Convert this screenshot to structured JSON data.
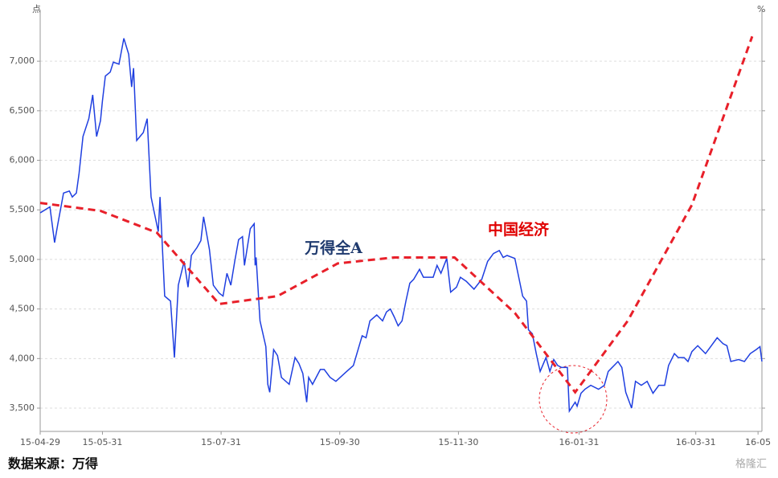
{
  "chart_data": {
    "type": "line",
    "y_unit": "点",
    "y2_unit": "%",
    "source": "数据来源：万得",
    "watermark": "格隆汇",
    "xlim": [
      0,
      371
    ],
    "xticks": [
      {
        "value": 0,
        "label": "15-04-29"
      },
      {
        "value": 32,
        "label": "15-05-31"
      },
      {
        "value": 93,
        "label": "15-07-31"
      },
      {
        "value": 154,
        "label": "15-09-30"
      },
      {
        "value": 215,
        "label": "15-11-30"
      },
      {
        "value": 277,
        "label": "16-01-31"
      },
      {
        "value": 337,
        "label": "16-03-31"
      },
      {
        "value": 369,
        "label": "16-05"
      }
    ],
    "ylim": [
      3265,
      7520
    ],
    "yticks": [
      {
        "value": 3500,
        "label": "3,500"
      },
      {
        "value": 4000,
        "label": "4,000"
      },
      {
        "value": 4500,
        "label": "4,500"
      },
      {
        "value": 5000,
        "label": "5,000"
      },
      {
        "value": 5500,
        "label": "5,500"
      },
      {
        "value": 6000,
        "label": "6,000"
      },
      {
        "value": 6500,
        "label": "6,500"
      },
      {
        "value": 7000,
        "label": "7,000"
      }
    ],
    "grid": true,
    "series": [
      {
        "name": "万得全A",
        "color": "#1f3fe0",
        "dash": false,
        "label_color": "#1f3a6e",
        "x": [
          0,
          5,
          7.4,
          9,
          12,
          15,
          16.5,
          18.6,
          20,
          22,
          25,
          27,
          29,
          31,
          32,
          33.5,
          36,
          37.6,
          40.5,
          43,
          45.5,
          47,
          48,
          49.6,
          53,
          55,
          57,
          60.7,
          61.6,
          64,
          67,
          69,
          71,
          74,
          76,
          77.7,
          80.6,
          82.6,
          84,
          87,
          89,
          92,
          94,
          96,
          98,
          100,
          102,
          104,
          105,
          108,
          110,
          110.5,
          111,
          113,
          116,
          117,
          118,
          120,
          122,
          124,
          128,
          131,
          133,
          135,
          137,
          138,
          140,
          144,
          146,
          149,
          152,
          157,
          161,
          165.5,
          167.5,
          169.5,
          173,
          176,
          178,
          180,
          182,
          184,
          186,
          188,
          190,
          192,
          195,
          197,
          199,
          202,
          204,
          206,
          209,
          211,
          214,
          216,
          219,
          223,
          227,
          230,
          233,
          236,
          238,
          240,
          244,
          246,
          248,
          250,
          251,
          253,
          255,
          257,
          260,
          262,
          264,
          266,
          268,
          271,
          272,
          275,
          276,
          278,
          280,
          283,
          287,
          290,
          292,
          294,
          297,
          299,
          301,
          304,
          306,
          309,
          312,
          315,
          318,
          321,
          323,
          326,
          328,
          331,
          333,
          335,
          338,
          342,
          345,
          348,
          351,
          353,
          355,
          359,
          362,
          365,
          368,
          370,
          371
        ],
        "values": [
          5470,
          5530,
          5170,
          5350,
          5670,
          5690,
          5630,
          5670,
          5870,
          6240,
          6420,
          6660,
          6240,
          6400,
          6600,
          6850,
          6890,
          6990,
          6970,
          7230,
          7070,
          6740,
          6930,
          6200,
          6280,
          6420,
          5630,
          5280,
          5630,
          4630,
          4580,
          4010,
          4740,
          4980,
          4720,
          5040,
          5120,
          5190,
          5430,
          5100,
          4740,
          4660,
          4630,
          4860,
          4740,
          4980,
          5200,
          5230,
          4940,
          5310,
          5360,
          4940,
          5020,
          4380,
          4120,
          3740,
          3660,
          4090,
          4030,
          3810,
          3740,
          4010,
          3950,
          3850,
          3560,
          3810,
          3740,
          3890,
          3890,
          3810,
          3770,
          3860,
          3930,
          4230,
          4210,
          4380,
          4440,
          4380,
          4470,
          4500,
          4420,
          4330,
          4380,
          4580,
          4760,
          4800,
          4900,
          4820,
          4820,
          4820,
          4940,
          4860,
          5010,
          4670,
          4720,
          4820,
          4780,
          4700,
          4800,
          4980,
          5060,
          5090,
          5020,
          5040,
          5010,
          4820,
          4630,
          4580,
          4290,
          4250,
          4050,
          3870,
          4010,
          3870,
          3990,
          3930,
          3910,
          3910,
          3470,
          3560,
          3520,
          3650,
          3690,
          3730,
          3690,
          3730,
          3870,
          3910,
          3970,
          3910,
          3660,
          3500,
          3770,
          3730,
          3770,
          3650,
          3730,
          3730,
          3930,
          4050,
          4010,
          4010,
          3970,
          4070,
          4130,
          4050,
          4130,
          4210,
          4150,
          4130,
          3970,
          3990,
          3970,
          4050,
          4090,
          4120,
          3970
        ]
      },
      {
        "name": "中国经济",
        "color": "#e8202a",
        "dash": true,
        "label_color": "#e00000",
        "x": [
          0,
          31,
          60,
          92,
          122,
          153,
          182,
          213,
          244,
          275,
          302,
          335,
          366
        ],
        "values": [
          5570,
          5490,
          5270,
          4550,
          4630,
          4960,
          5020,
          5020,
          4460,
          3660,
          4380,
          5550,
          7250
        ]
      }
    ]
  }
}
